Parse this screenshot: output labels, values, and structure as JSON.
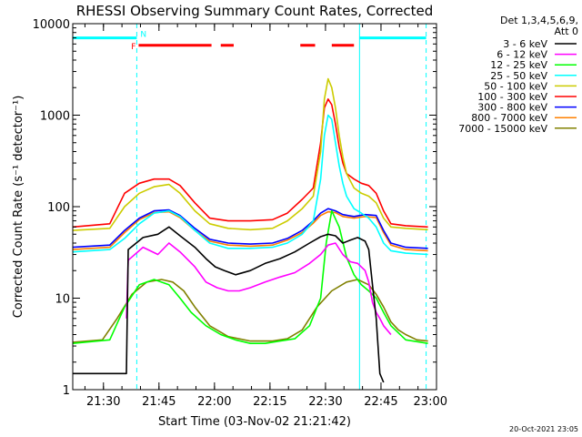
{
  "chart_data": {
    "type": "line",
    "title": "RHESSI Observing Summary Count Rates, Corrected",
    "xlabel": "Start Time (03-Nov-02 21:21:42)",
    "ylabel": "Corrected Count Rate (s⁻¹ detector⁻¹)",
    "x_unit": "minutes after 21:21:42 UT",
    "xlim": [
      0,
      98.3
    ],
    "ylim": [
      1,
      10000
    ],
    "y_scale": "log",
    "x_ticks": [
      {
        "x": 8.3,
        "label": "21:30"
      },
      {
        "x": 23.3,
        "label": "21:45"
      },
      {
        "x": 38.3,
        "label": "22:00"
      },
      {
        "x": 53.3,
        "label": "22:15"
      },
      {
        "x": 68.3,
        "label": "22:30"
      },
      {
        "x": 83.3,
        "label": "22:45"
      },
      {
        "x": 98.3,
        "label": "23:00"
      }
    ],
    "y_ticks": [
      {
        "y": 1,
        "label": "1"
      },
      {
        "y": 10,
        "label": "10"
      },
      {
        "y": 100,
        "label": "100"
      },
      {
        "y": 1000,
        "label": "1000"
      },
      {
        "y": 10000,
        "label": "10000"
      }
    ],
    "legend_title": [
      "Det 1,3,4,5,6,9,",
      "Att 0"
    ],
    "legend_position": "right",
    "grid": false,
    "series": [
      {
        "name": "3 - 6 keV",
        "color": "#000000",
        "x": [
          0,
          14.5,
          15.0,
          19.0,
          23.0,
          26.0,
          29.0,
          33.0,
          36.0,
          38.5,
          41.0,
          44.0,
          48.0,
          52.0,
          56.0,
          60.0,
          64.0,
          67.0,
          69.0,
          71.0,
          73.0,
          75.0,
          77.0,
          79.0,
          80.0,
          81.0,
          82.0,
          83.0,
          84.0
        ],
        "y": [
          1.5,
          1.5,
          34,
          46,
          50,
          60,
          48,
          36,
          27,
          22,
          20,
          18,
          20,
          24,
          27,
          32,
          40,
          47,
          50,
          48,
          40,
          43,
          46,
          42,
          34,
          14,
          6,
          1.5,
          1.2
        ]
      },
      {
        "name": "6 - 12 keV",
        "color": "#ff00ff",
        "x": [
          14.5,
          15.0,
          19.0,
          23.0,
          26.0,
          29.0,
          33.0,
          36.0,
          39.0,
          42.0,
          45.0,
          48.0,
          52.0,
          56.0,
          60.0,
          64.0,
          67.0,
          69.0,
          71.0,
          73.0,
          75.0,
          77.0,
          79.0,
          80.0,
          81.0,
          82.0,
          83.0,
          84.0,
          86.0
        ],
        "y": [
          6,
          26,
          36,
          30,
          40,
          32,
          22,
          15,
          13,
          12,
          12,
          13,
          15,
          17,
          19,
          24,
          30,
          38,
          40,
          30,
          25,
          24,
          20,
          15,
          9,
          7,
          6,
          5,
          4
        ]
      },
      {
        "name": "12 - 25 keV",
        "color": "#00ff00",
        "x": [
          0,
          10.0,
          14.0,
          18.0,
          22.0,
          26.0,
          29.0,
          32.0,
          36.0,
          40.0,
          44.0,
          48.0,
          52.0,
          56.0,
          60.0,
          64.0,
          67.0,
          68.5,
          70.0,
          72.0,
          74.0,
          76.0,
          78.0,
          80.0,
          82.0,
          84.0,
          86.0,
          90.0,
          96.0
        ],
        "y": [
          3.2,
          3.5,
          8,
          14,
          16,
          14,
          10,
          7,
          5,
          4,
          3.5,
          3.2,
          3.2,
          3.4,
          3.6,
          5,
          10,
          40,
          90,
          60,
          28,
          18,
          14,
          12,
          10,
          7,
          5,
          3.5,
          3.2
        ]
      },
      {
        "name": "25 - 50 keV",
        "color": "#00ffff",
        "x": [
          0,
          10.0,
          14.0,
          18.0,
          22.0,
          26.0,
          29.0,
          33.0,
          37.0,
          42.0,
          48.0,
          54.0,
          58.0,
          62.0,
          65.0,
          67.0,
          68.0,
          69.0,
          70.0,
          71.0,
          72.0,
          73.0,
          74.0,
          76.0,
          78.0,
          80.0,
          82.0,
          84.0,
          86.0,
          90.0,
          96.0
        ],
        "y": [
          32,
          34,
          45,
          65,
          85,
          90,
          78,
          55,
          40,
          35,
          35,
          36,
          40,
          50,
          70,
          200,
          600,
          1000,
          900,
          500,
          280,
          180,
          130,
          95,
          85,
          75,
          60,
          40,
          33,
          31,
          30
        ]
      },
      {
        "name": "50 - 100 keV",
        "color": "#cccc00",
        "x": [
          0,
          10.0,
          14.0,
          18.0,
          22.0,
          26.0,
          29.0,
          33.0,
          37.0,
          42.0,
          48.0,
          54.0,
          58.0,
          62.0,
          65.0,
          67.0,
          68.0,
          69.0,
          70.0,
          71.0,
          72.0,
          73.0,
          74.0,
          76.0,
          78.0,
          80.0,
          82.0,
          84.0,
          86.0,
          90.0,
          96.0
        ],
        "y": [
          55,
          58,
          100,
          140,
          165,
          175,
          140,
          90,
          65,
          58,
          56,
          58,
          70,
          95,
          130,
          400,
          1500,
          2500,
          2000,
          1200,
          600,
          350,
          230,
          160,
          140,
          130,
          110,
          75,
          60,
          58,
          56
        ]
      },
      {
        "name": "100 - 300 keV",
        "color": "#ff0000",
        "x": [
          0,
          10.0,
          14.0,
          18.0,
          22.0,
          26.0,
          29.0,
          33.0,
          37.0,
          42.0,
          48.0,
          54.0,
          58.0,
          62.0,
          65.0,
          67.0,
          68.0,
          69.0,
          70.0,
          71.0,
          72.0,
          73.0,
          74.0,
          76.0,
          78.0,
          80.0,
          82.0,
          84.0,
          86.0,
          90.0,
          96.0
        ],
        "y": [
          60,
          65,
          140,
          180,
          200,
          200,
          170,
          110,
          75,
          70,
          70,
          72,
          85,
          120,
          160,
          500,
          1200,
          1500,
          1300,
          800,
          450,
          300,
          230,
          200,
          180,
          170,
          140,
          90,
          65,
          62,
          60
        ]
      },
      {
        "name": "300 - 800 keV",
        "color": "#0000ff",
        "x": [
          0,
          10.0,
          14.0,
          18.0,
          22.0,
          26.0,
          29.0,
          33.0,
          37.0,
          42.0,
          48.0,
          54.0,
          58.0,
          62.0,
          65.0,
          67.0,
          69.0,
          71.0,
          73.0,
          76.0,
          79.0,
          82.0,
          84.0,
          86.0,
          90.0,
          96.0
        ],
        "y": [
          36,
          38,
          55,
          75,
          90,
          92,
          80,
          58,
          44,
          40,
          39,
          40,
          45,
          55,
          70,
          85,
          95,
          90,
          82,
          78,
          82,
          80,
          55,
          40,
          36,
          35
        ]
      },
      {
        "name": "800 - 7000 keV",
        "color": "#ff8000",
        "x": [
          0,
          10.0,
          14.0,
          18.0,
          22.0,
          26.0,
          29.0,
          33.0,
          37.0,
          42.0,
          48.0,
          54.0,
          58.0,
          62.0,
          65.0,
          67.0,
          69.0,
          71.0,
          73.0,
          76.0,
          79.0,
          82.0,
          84.0,
          86.0,
          90.0,
          96.0
        ],
        "y": [
          34,
          36,
          52,
          72,
          86,
          88,
          76,
          55,
          42,
          38,
          37,
          38,
          43,
          52,
          66,
          80,
          88,
          86,
          78,
          75,
          78,
          76,
          52,
          38,
          34,
          33
        ]
      },
      {
        "name": "7000 - 15000 keV",
        "color": "#808000",
        "x": [
          0,
          8.0,
          12.0,
          16.0,
          20.0,
          24.0,
          27.0,
          30.0,
          33.0,
          37.0,
          42.0,
          48.0,
          54.0,
          58.0,
          62.0,
          66.0,
          70.0,
          74.0,
          77.0,
          80.0,
          82.0,
          84.0,
          86.0,
          88.0,
          90.0,
          93.0,
          96.0
        ],
        "y": [
          3.3,
          3.5,
          6,
          11,
          15,
          16,
          15,
          12,
          8,
          5,
          3.8,
          3.4,
          3.4,
          3.6,
          4.5,
          8,
          12,
          15,
          16,
          14,
          11,
          8,
          5.5,
          4.5,
          4,
          3.5,
          3.4
        ]
      }
    ],
    "markers": {
      "vertical_lines": [
        {
          "x": 0.0,
          "color": "#00ffff",
          "style": "solid"
        },
        {
          "x": 17.3,
          "color": "#00ffff",
          "style": "dashed"
        },
        {
          "x": 77.5,
          "color": "#00ffff",
          "style": "solid"
        },
        {
          "x": 95.5,
          "color": "#00ffff",
          "style": "dashed"
        }
      ],
      "night_bars": {
        "label": "N",
        "color": "#00ffff",
        "y": 7000,
        "segments": [
          [
            0,
            17.3
          ],
          [
            77.5,
            95.5
          ]
        ]
      },
      "flare_bars": {
        "label": "F",
        "color": "#ff0000",
        "y": 5800,
        "segments": [
          [
            17.8,
            37.5
          ],
          [
            40.0,
            43.5
          ],
          [
            61.5,
            65.5
          ],
          [
            70.0,
            76.0
          ]
        ]
      }
    }
  },
  "timestamp": "20-Oct-2021 23:05"
}
